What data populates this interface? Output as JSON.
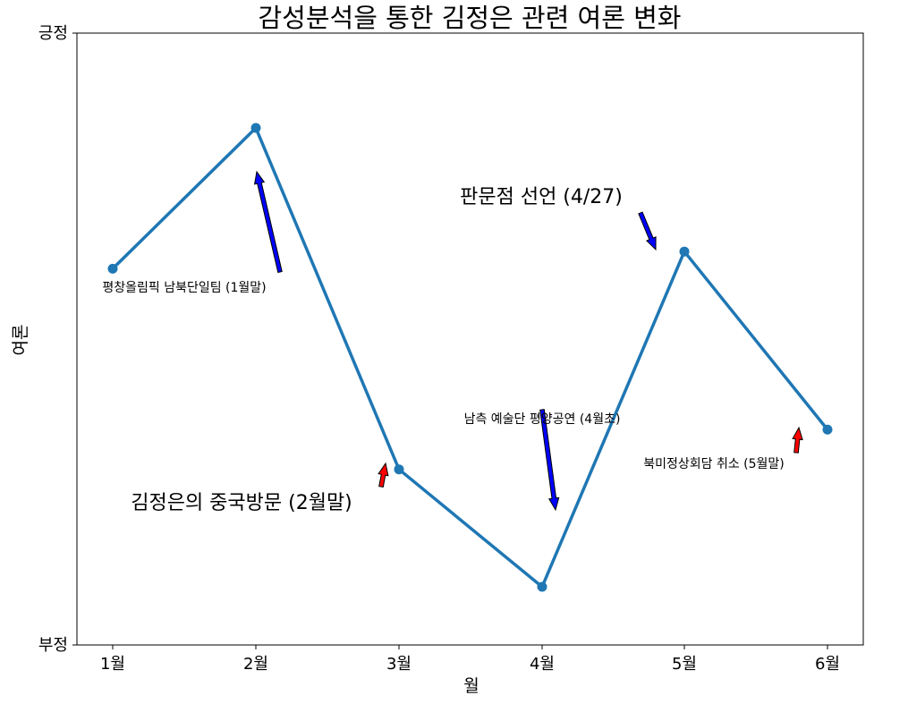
{
  "chart_data": {
    "type": "line",
    "title": "감성분석을 통한 김정은 관련 여론 변화",
    "xlabel": "월",
    "ylabel": "여론",
    "categories": [
      "1월",
      "2월",
      "3월",
      "4월",
      "5월",
      "6월"
    ],
    "values": [
      0.615,
      0.845,
      0.287,
      0.095,
      0.643,
      0.352
    ],
    "ylim": [
      0,
      1
    ],
    "yticks": [
      {
        "value": 0,
        "label": "부정"
      },
      {
        "value": 1,
        "label": "긍정"
      }
    ],
    "grid": false,
    "line_color": "#1f77b4",
    "annotations": [
      {
        "text": "평창올림픽 남북단일팀 (1월말)",
        "size": "small",
        "arrow_color": "#0000ff"
      },
      {
        "text": "김정은의 중국방문 (2월말)",
        "size": "large",
        "arrow_color": "#ff0000"
      },
      {
        "text": "남측 예술단 평양공연 (4월초)",
        "size": "small",
        "arrow_color": "#0000ff"
      },
      {
        "text": "판문점 선언 (4/27)",
        "size": "large",
        "arrow_color": "#0000ff"
      },
      {
        "text": "북미정상회담 취소 (5월말)",
        "size": "small",
        "arrow_color": "#ff0000"
      }
    ]
  }
}
